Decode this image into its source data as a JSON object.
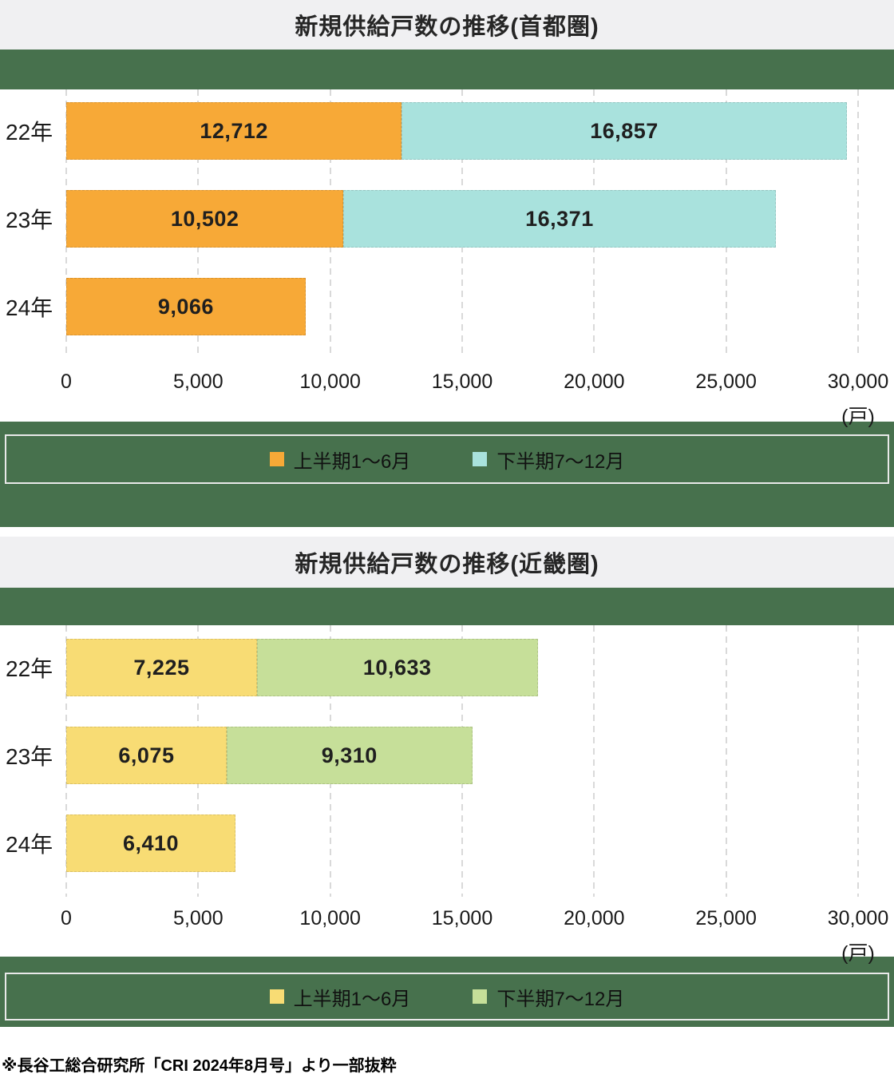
{
  "page": {
    "footer_note": "※長谷工総合研究所「CRI 2024年8月号」より一部抜粋"
  },
  "colors": {
    "band_green": "#47714d",
    "title_band_bg": "#f0f0f2",
    "gridline": "#d9d9d9",
    "legend_box_border": "#e9e9e9"
  },
  "chart_data": [
    {
      "type": "bar",
      "orientation": "horizontal",
      "stacked": true,
      "title": "新規供給戸数の推移(首都圏)",
      "categories": [
        "22年",
        "23年",
        "24年"
      ],
      "series": [
        {
          "name": "上半期1〜6月",
          "color": "#f7a937",
          "values": [
            12712,
            10502,
            9066
          ]
        },
        {
          "name": "下半期7〜12月",
          "color": "#a9e2dd",
          "values": [
            16857,
            16371,
            null
          ]
        }
      ],
      "xlim": [
        0,
        30000
      ],
      "tick_labels": [
        "0",
        "5,000",
        "10,000",
        "15,000",
        "20,000",
        "25,000",
        "30,000"
      ],
      "unit_label": "(戸)",
      "grid": true,
      "legend_position": "bottom-band"
    },
    {
      "type": "bar",
      "orientation": "horizontal",
      "stacked": true,
      "title": "新規供給戸数の推移(近畿圏)",
      "categories": [
        "22年",
        "23年",
        "24年"
      ],
      "series": [
        {
          "name": "上半期1〜6月",
          "color": "#f8dc74",
          "values": [
            7225,
            6075,
            6410
          ]
        },
        {
          "name": "下半期7〜12月",
          "color": "#c6df99",
          "values": [
            10633,
            9310,
            null
          ]
        }
      ],
      "xlim": [
        0,
        30000
      ],
      "tick_labels": [
        "0",
        "5,000",
        "10,000",
        "15,000",
        "20,000",
        "25,000",
        "30,000"
      ],
      "unit_label": "(戸)",
      "grid": true,
      "legend_position": "bottom-band"
    }
  ]
}
